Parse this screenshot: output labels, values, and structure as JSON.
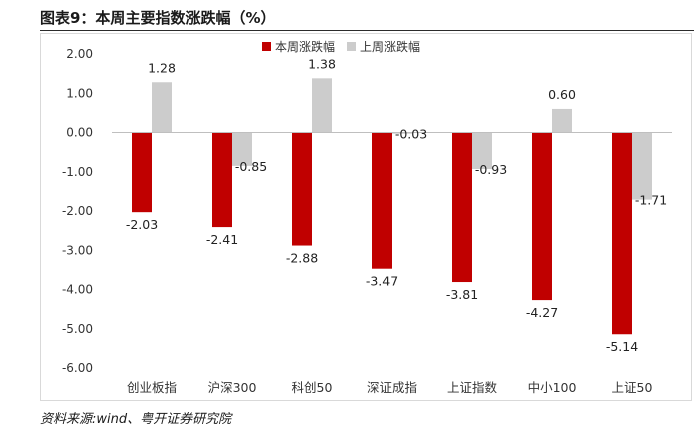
{
  "title": "图表9：本周主要指数涨跌幅（%）",
  "source": "资料来源:wind、粤开证券研究院",
  "chart_data": {
    "type": "bar",
    "title": "",
    "xlabel": "",
    "ylabel": "",
    "ylim": [
      -6,
      2
    ],
    "yticks": [
      "2.00",
      "1.00",
      "0.00",
      "-1.00",
      "-2.00",
      "-3.00",
      "-4.00",
      "-5.00",
      "-6.00"
    ],
    "grid": false,
    "legend_position": "top-center",
    "categories": [
      "创业板指",
      "沪深300",
      "科创50",
      "深证成指",
      "上证指数",
      "中小100",
      "上证50"
    ],
    "series": [
      {
        "name": "本周涨跌幅",
        "color": "#c00000",
        "values": [
          -2.03,
          -2.41,
          -2.88,
          -3.47,
          -3.81,
          -4.27,
          -5.14
        ],
        "labels": [
          "-2.03",
          "-2.41",
          "-2.88",
          "-3.47",
          "-3.81",
          "-4.27",
          "-5.14"
        ]
      },
      {
        "name": "上周涨跌幅",
        "color": "#cccccc",
        "values": [
          1.28,
          -0.85,
          1.38,
          -0.03,
          -0.93,
          0.6,
          -1.71
        ],
        "labels": [
          "1.28",
          "-0.85",
          "1.38",
          "-0.03",
          "-0.93",
          "0.60",
          "-1.71"
        ]
      }
    ]
  }
}
